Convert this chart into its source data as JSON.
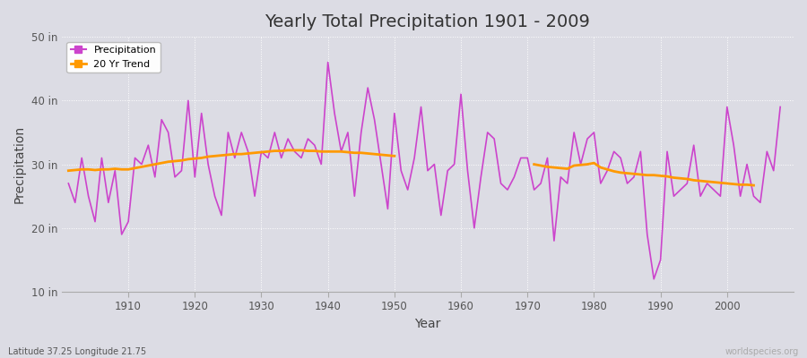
{
  "title": "Yearly Total Precipitation 1901 - 2009",
  "xlabel": "Year",
  "ylabel": "Precipitation",
  "subtitle": "Latitude 37.25 Longitude 21.75",
  "watermark": "worldspecies.org",
  "line_color": "#cc44cc",
  "trend_color": "#ff9900",
  "bg_color": "#dcdce4",
  "grid_color": "#ffffff",
  "ylim": [
    10,
    50
  ],
  "yticks": [
    10,
    20,
    30,
    40,
    50
  ],
  "ytick_labels": [
    "10 in",
    "20 in",
    "30 in",
    "40 in",
    "50 in"
  ],
  "years": [
    1901,
    1902,
    1903,
    1904,
    1905,
    1906,
    1907,
    1908,
    1909,
    1910,
    1911,
    1912,
    1913,
    1914,
    1915,
    1916,
    1917,
    1918,
    1919,
    1920,
    1921,
    1922,
    1923,
    1924,
    1925,
    1926,
    1927,
    1928,
    1929,
    1930,
    1931,
    1932,
    1933,
    1934,
    1935,
    1936,
    1937,
    1938,
    1939,
    1940,
    1941,
    1942,
    1943,
    1944,
    1945,
    1946,
    1947,
    1948,
    1949,
    1950,
    1951,
    1952,
    1953,
    1954,
    1955,
    1956,
    1957,
    1958,
    1959,
    1960,
    1961,
    1962,
    1963,
    1964,
    1965,
    1966,
    1967,
    1968,
    1969,
    1970,
    1971,
    1972,
    1973,
    1974,
    1975,
    1976,
    1977,
    1978,
    1979,
    1980,
    1981,
    1982,
    1983,
    1984,
    1985,
    1986,
    1987,
    1988,
    1989,
    1990,
    1991,
    1992,
    1993,
    1994,
    1995,
    1996,
    1997,
    1998,
    1999,
    2000,
    2001,
    2002,
    2003,
    2004,
    2005,
    2006,
    2007,
    2008,
    2009
  ],
  "precip": [
    27,
    24,
    31,
    25,
    21,
    31,
    24,
    29,
    19,
    21,
    31,
    30,
    33,
    28,
    37,
    35,
    28,
    29,
    40,
    28,
    38,
    30,
    25,
    22,
    35,
    31,
    35,
    32,
    25,
    32,
    31,
    35,
    31,
    34,
    32,
    31,
    34,
    33,
    30,
    46,
    38,
    32,
    35,
    25,
    35,
    42,
    37,
    30,
    23,
    38,
    29,
    26,
    31,
    39,
    29,
    30,
    22,
    29,
    30,
    41,
    29,
    20,
    28,
    35,
    34,
    27,
    26,
    28,
    31,
    31,
    26,
    27,
    31,
    18,
    28,
    27,
    35,
    30,
    34,
    35,
    27,
    29,
    32,
    31,
    27,
    28,
    32,
    19,
    12,
    15,
    32,
    25,
    26,
    27,
    33,
    25,
    27,
    26,
    25,
    39,
    33,
    25,
    30,
    25,
    24,
    32,
    29,
    39
  ],
  "trend_years": [
    1901,
    1902,
    1903,
    1904,
    1905,
    1906,
    1907,
    1908,
    1909,
    1910,
    1911,
    1912,
    1913,
    1914,
    1915,
    1916,
    1917,
    1918,
    1919,
    1920,
    1921,
    1922,
    1923,
    1924,
    1925,
    1926,
    1927,
    1928,
    1929,
    1930,
    1931,
    1932,
    1933,
    1934,
    1935,
    1936,
    1937,
    1938,
    1939,
    1940,
    1941,
    1942,
    1943,
    1944,
    1945,
    1946,
    1947,
    1948,
    1949,
    1950,
    1971,
    1972,
    1973,
    1974,
    1975,
    1976,
    1977,
    1978,
    1979,
    1980,
    1981,
    1982,
    1983,
    1984,
    1985,
    1986,
    1987,
    1988,
    1989,
    1990,
    1991,
    1992,
    1993,
    1994,
    1995,
    1996,
    1997,
    1998,
    1999,
    2000,
    2001,
    2002,
    2003,
    2004
  ],
  "trend_vals": [
    29.0,
    29.1,
    29.2,
    29.2,
    29.1,
    29.2,
    29.2,
    29.3,
    29.2,
    29.2,
    29.4,
    29.6,
    29.8,
    30.0,
    30.2,
    30.4,
    30.5,
    30.6,
    30.8,
    30.9,
    31.0,
    31.2,
    31.3,
    31.4,
    31.5,
    31.6,
    31.6,
    31.7,
    31.8,
    31.9,
    32.0,
    32.1,
    32.1,
    32.2,
    32.2,
    32.2,
    32.1,
    32.1,
    32.0,
    32.0,
    32.0,
    32.0,
    31.9,
    31.8,
    31.8,
    31.7,
    31.6,
    31.5,
    31.4,
    31.3,
    30.0,
    29.8,
    29.6,
    29.5,
    29.4,
    29.3,
    29.8,
    29.9,
    30.0,
    30.2,
    29.5,
    29.2,
    28.9,
    28.7,
    28.6,
    28.5,
    28.4,
    28.3,
    28.3,
    28.2,
    28.1,
    27.9,
    27.8,
    27.7,
    27.5,
    27.4,
    27.3,
    27.2,
    27.1,
    27.0,
    26.9,
    26.8,
    26.8,
    26.7
  ]
}
